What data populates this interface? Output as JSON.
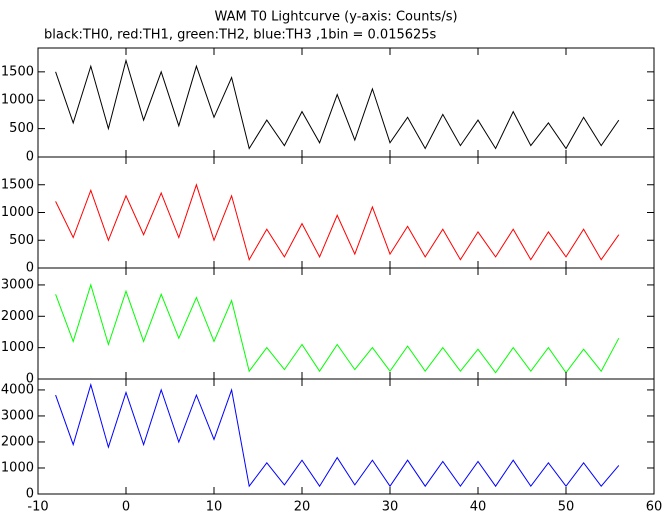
{
  "title": "WAM T0 Lightcurve (y-axis: Counts/s)",
  "subtitle": "black:TH0, red:TH1, green:TH2, blue:TH3 ,1bin = 0.015625s",
  "chart_data": [
    {
      "type": "line",
      "color": "#000000",
      "x": [
        -8,
        -6,
        -4,
        -2,
        0,
        2,
        4,
        6,
        8,
        10,
        12,
        14,
        16,
        18,
        20,
        22,
        24,
        26,
        28,
        30,
        32,
        34,
        36,
        38,
        40,
        42,
        44,
        46,
        48,
        50,
        52,
        54,
        56
      ],
      "values": [
        1500,
        600,
        1600,
        500,
        1700,
        650,
        1500,
        550,
        1600,
        700,
        1400,
        150,
        650,
        200,
        800,
        250,
        1100,
        300,
        1200,
        250,
        700,
        150,
        750,
        200,
        650,
        150,
        800,
        200,
        600,
        150,
        700,
        200,
        650
      ],
      "ylim": [
        0,
        1920
      ],
      "yticks": [
        0,
        500,
        1000,
        1500
      ]
    },
    {
      "type": "line",
      "color": "#ff0000",
      "x": [
        -8,
        -6,
        -4,
        -2,
        0,
        2,
        4,
        6,
        8,
        10,
        12,
        14,
        16,
        18,
        20,
        22,
        24,
        26,
        28,
        30,
        32,
        34,
        36,
        38,
        40,
        42,
        44,
        46,
        48,
        50,
        52,
        54,
        56
      ],
      "values": [
        1200,
        550,
        1400,
        500,
        1300,
        600,
        1350,
        550,
        1500,
        500,
        1300,
        150,
        700,
        200,
        800,
        200,
        950,
        250,
        1100,
        250,
        750,
        200,
        700,
        150,
        650,
        200,
        700,
        150,
        650,
        200,
        700,
        150,
        600
      ],
      "ylim": [
        0,
        2000
      ],
      "yticks": [
        0,
        500,
        1000,
        1500
      ]
    },
    {
      "type": "line",
      "color": "#00ff00",
      "x": [
        -8,
        -6,
        -4,
        -2,
        0,
        2,
        4,
        6,
        8,
        10,
        12,
        14,
        16,
        18,
        20,
        22,
        24,
        26,
        28,
        30,
        32,
        34,
        36,
        38,
        40,
        42,
        44,
        46,
        48,
        50,
        52,
        54,
        56
      ],
      "values": [
        2700,
        1200,
        3000,
        1100,
        2800,
        1200,
        2700,
        1300,
        2600,
        1200,
        2500,
        250,
        1000,
        300,
        1100,
        250,
        1100,
        300,
        1000,
        250,
        1050,
        250,
        1000,
        250,
        950,
        200,
        1000,
        250,
        1000,
        200,
        950,
        250,
        1300
      ],
      "ylim": [
        0,
        3540
      ],
      "yticks": [
        0,
        1000,
        2000,
        3000
      ]
    },
    {
      "type": "line",
      "color": "#0000ff",
      "x": [
        -8,
        -6,
        -4,
        -2,
        0,
        2,
        4,
        6,
        8,
        10,
        12,
        14,
        16,
        18,
        20,
        22,
        24,
        26,
        28,
        30,
        32,
        34,
        36,
        38,
        40,
        42,
        44,
        46,
        48,
        50,
        52,
        54,
        56
      ],
      "values": [
        3800,
        1900,
        4200,
        1800,
        3900,
        1900,
        4000,
        2000,
        3800,
        2100,
        4000,
        300,
        1200,
        350,
        1300,
        300,
        1400,
        350,
        1300,
        300,
        1300,
        300,
        1250,
        300,
        1250,
        300,
        1300,
        300,
        1200,
        300,
        1200,
        300,
        1100
      ],
      "ylim": [
        0,
        4420
      ],
      "yticks": [
        0,
        1000,
        2000,
        3000,
        4000
      ],
      "xlim": [
        -10,
        60
      ],
      "xticks": [
        -10,
        0,
        10,
        20,
        30,
        40,
        50,
        60
      ]
    }
  ]
}
